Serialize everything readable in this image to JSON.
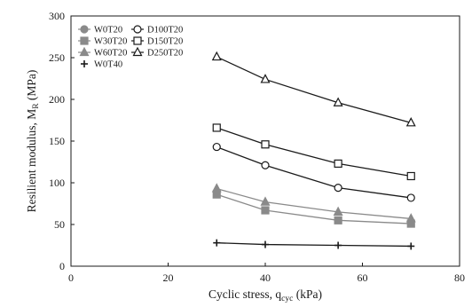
{
  "chart_data": {
    "type": "line",
    "title": "",
    "xlabel": {
      "main": "Cyclic stress, q",
      "sub": "cyc",
      "unit": " (kPa)"
    },
    "ylabel": {
      "main": "Resilient modulus, M",
      "sub": "R",
      "unit": " (MPa)"
    },
    "xlim": [
      0,
      80
    ],
    "ylim": [
      0,
      300
    ],
    "xticks": [
      0,
      20,
      40,
      60,
      80
    ],
    "yticks": [
      0,
      50,
      100,
      150,
      200,
      250,
      300
    ],
    "grid": false,
    "legend_position": "top-left",
    "x": [
      30,
      40,
      55,
      70
    ],
    "series": [
      {
        "name": "W0T20",
        "marker": "filled-circle",
        "color": "#8a8a8a",
        "values": [
          null,
          null,
          null,
          null
        ]
      },
      {
        "name": "W30T20",
        "marker": "filled-square",
        "color": "#8a8a8a",
        "values": [
          86,
          67,
          55,
          51
        ]
      },
      {
        "name": "W60T20",
        "marker": "filled-triangle",
        "color": "#8a8a8a",
        "values": [
          93,
          77,
          65,
          57
        ]
      },
      {
        "name": "W0T40",
        "marker": "plus",
        "color": "#1a1a1a",
        "values": [
          28,
          26,
          25,
          24
        ]
      },
      {
        "name": "D100T20",
        "marker": "open-circle",
        "color": "#1a1a1a",
        "values": [
          143,
          121,
          94,
          82
        ]
      },
      {
        "name": "D150T20",
        "marker": "open-square",
        "color": "#1a1a1a",
        "values": [
          166,
          146,
          123,
          108
        ]
      },
      {
        "name": "D250T20",
        "marker": "open-triangle",
        "color": "#1a1a1a",
        "values": [
          251,
          224,
          196,
          172
        ]
      }
    ]
  }
}
